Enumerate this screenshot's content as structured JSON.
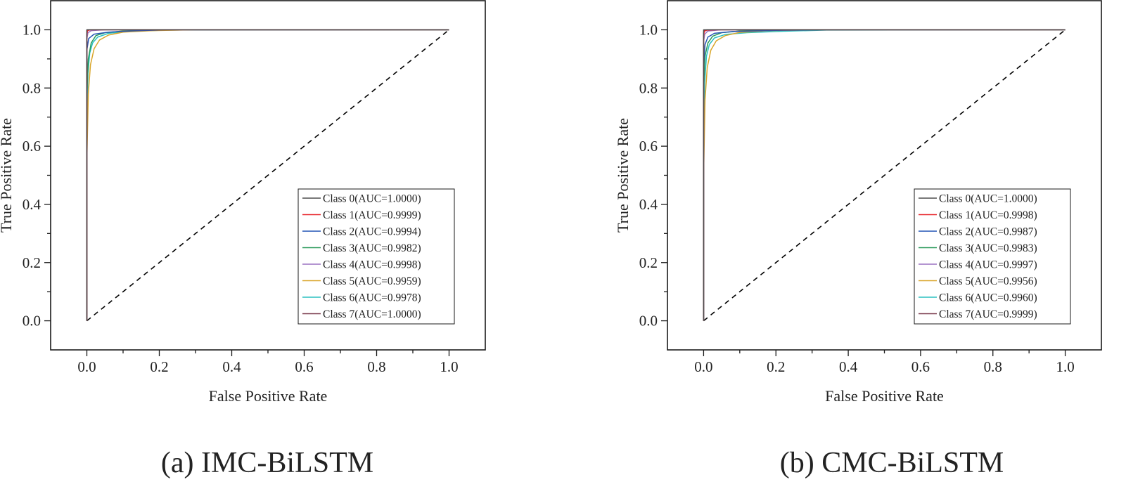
{
  "chart_data": [
    {
      "type": "line",
      "title": "(a) IMC-BiLSTM",
      "xlabel": "False Positive Rate",
      "ylabel": "True Positive Rate",
      "xlim": [
        -0.1,
        1.1
      ],
      "ylim": [
        -0.1,
        1.1
      ],
      "xticks": [
        "0.0",
        "0.2",
        "0.4",
        "0.6",
        "0.8",
        "1.0"
      ],
      "yticks": [
        "0.0",
        "0.2",
        "0.4",
        "0.6",
        "0.8",
        "1.0"
      ],
      "legend_position": "bottom-right",
      "diagonal": {
        "x": [
          0,
          1
        ],
        "y": [
          0,
          1
        ],
        "style": "dashed",
        "color": "#000000"
      },
      "series": [
        {
          "name": "Class 0(AUC=1.0000)",
          "color": "#4d4d4d",
          "x": [
            0,
            0,
            0.005,
            1
          ],
          "y": [
            0,
            1.0,
            1.0,
            1.0
          ]
        },
        {
          "name": "Class 1(AUC=0.9999)",
          "color": "#e8262b",
          "x": [
            0,
            0,
            0.002,
            0.01,
            1
          ],
          "y": [
            0,
            0.985,
            0.997,
            1.0,
            1.0
          ]
        },
        {
          "name": "Class 2(AUC=0.9994)",
          "color": "#2455b5",
          "x": [
            0,
            0,
            0.005,
            0.02,
            0.06,
            0.12,
            0.22,
            1
          ],
          "y": [
            0,
            0.93,
            0.97,
            0.985,
            0.992,
            0.996,
            1.0,
            1.0
          ]
        },
        {
          "name": "Class 3(AUC=0.9982)",
          "color": "#2a9a5a",
          "x": [
            0,
            0,
            0.004,
            0.012,
            0.025,
            0.05,
            0.1,
            0.2,
            1
          ],
          "y": [
            0,
            0.78,
            0.9,
            0.955,
            0.98,
            0.99,
            0.996,
            1.0,
            1.0
          ]
        },
        {
          "name": "Class 4(AUC=0.9998)",
          "color": "#9b72c2",
          "x": [
            0,
            0,
            0.003,
            0.012,
            0.05,
            1
          ],
          "y": [
            0,
            0.97,
            0.99,
            0.997,
            1.0,
            1.0
          ]
        },
        {
          "name": "Class 5(AUC=0.9959)",
          "color": "#d9a62a",
          "x": [
            0,
            0,
            0.004,
            0.01,
            0.02,
            0.035,
            0.06,
            0.1,
            0.18,
            0.3,
            1
          ],
          "y": [
            0,
            0.55,
            0.78,
            0.88,
            0.935,
            0.965,
            0.982,
            0.992,
            0.997,
            1.0,
            1.0
          ]
        },
        {
          "name": "Class 6(AUC=0.9978)",
          "color": "#2cc1c0",
          "x": [
            0,
            0,
            0.003,
            0.008,
            0.016,
            0.03,
            0.06,
            0.12,
            0.22,
            1
          ],
          "y": [
            0,
            0.65,
            0.85,
            0.92,
            0.955,
            0.975,
            0.988,
            0.995,
            0.999,
            1.0
          ]
        },
        {
          "name": "Class 7(AUC=1.0000)",
          "color": "#7a3b4e",
          "x": [
            0,
            0,
            0.004,
            1
          ],
          "y": [
            0,
            1.0,
            1.0,
            1.0
          ]
        }
      ]
    },
    {
      "type": "line",
      "title": "(b) CMC-BiLSTM",
      "xlabel": "False Positive Rate",
      "ylabel": "True Positive Rate",
      "xlim": [
        -0.1,
        1.1
      ],
      "ylim": [
        -0.1,
        1.1
      ],
      "xticks": [
        "0.0",
        "0.2",
        "0.4",
        "0.6",
        "0.8",
        "1.0"
      ],
      "yticks": [
        "0.0",
        "0.2",
        "0.4",
        "0.6",
        "0.8",
        "1.0"
      ],
      "legend_position": "bottom-right",
      "diagonal": {
        "x": [
          0,
          1
        ],
        "y": [
          0,
          1
        ],
        "style": "dashed",
        "color": "#000000"
      },
      "series": [
        {
          "name": "Class 0(AUC=1.0000)",
          "color": "#4d4d4d",
          "x": [
            0,
            0,
            0.005,
            1
          ],
          "y": [
            0,
            1.0,
            1.0,
            1.0
          ]
        },
        {
          "name": "Class 1(AUC=0.9998)",
          "color": "#e8262b",
          "x": [
            0,
            0,
            0.002,
            0.01,
            0.04,
            1
          ],
          "y": [
            0,
            0.98,
            0.995,
            0.999,
            1.0,
            1.0
          ]
        },
        {
          "name": "Class 2(AUC=0.9987)",
          "color": "#2455b5",
          "x": [
            0,
            0,
            0.004,
            0.012,
            0.03,
            0.08,
            0.2,
            0.34,
            1
          ],
          "y": [
            0,
            0.88,
            0.95,
            0.975,
            0.988,
            0.994,
            0.998,
            1.0,
            1.0
          ]
        },
        {
          "name": "Class 3(AUC=0.9983)",
          "color": "#2a9a5a",
          "x": [
            0,
            0,
            0.004,
            0.012,
            0.025,
            0.05,
            0.1,
            0.2,
            1
          ],
          "y": [
            0,
            0.8,
            0.91,
            0.955,
            0.978,
            0.99,
            0.996,
            1.0,
            1.0
          ]
        },
        {
          "name": "Class 4(AUC=0.9997)",
          "color": "#9b72c2",
          "x": [
            0,
            0,
            0.003,
            0.012,
            0.05,
            1
          ],
          "y": [
            0,
            0.96,
            0.985,
            0.996,
            1.0,
            1.0
          ]
        },
        {
          "name": "Class 5(AUC=0.9956)",
          "color": "#d9a62a",
          "x": [
            0,
            0,
            0.004,
            0.01,
            0.02,
            0.035,
            0.06,
            0.1,
            0.18,
            0.3,
            1
          ],
          "y": [
            0,
            0.5,
            0.76,
            0.87,
            0.93,
            0.962,
            0.98,
            0.991,
            0.997,
            1.0,
            1.0
          ]
        },
        {
          "name": "Class 6(AUC=0.9960)",
          "color": "#2cc1c0",
          "x": [
            0,
            0,
            0.003,
            0.008,
            0.016,
            0.03,
            0.06,
            0.12,
            0.22,
            0.34,
            1
          ],
          "y": [
            0,
            0.6,
            0.82,
            0.91,
            0.95,
            0.972,
            0.984,
            0.99,
            0.995,
            0.999,
            1.0
          ]
        },
        {
          "name": "Class 7(AUC=0.9999)",
          "color": "#7a3b4e",
          "x": [
            0,
            0,
            0.002,
            0.01,
            1
          ],
          "y": [
            0,
            0.99,
            0.998,
            1.0,
            1.0
          ]
        }
      ]
    }
  ]
}
